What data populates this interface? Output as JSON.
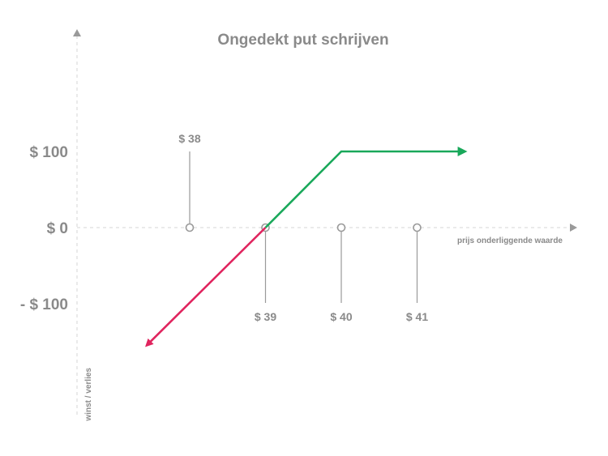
{
  "chart_data": {
    "type": "line",
    "title": "Ongedekt put schrijven",
    "xlabel": "prijs onderliggende waarde",
    "ylabel": "winst / verlies",
    "grid": false,
    "x_ticks": [
      {
        "value": 38,
        "label": "$ 38",
        "label_position": "above"
      },
      {
        "value": 39,
        "label": "$ 39",
        "label_position": "below"
      },
      {
        "value": 40,
        "label": "$ 40",
        "label_position": "below"
      },
      {
        "value": 41,
        "label": "$ 41",
        "label_position": "below"
      }
    ],
    "y_ticks": [
      {
        "value": 100,
        "label": "$ 100"
      },
      {
        "value": 0,
        "label": "$ 0"
      },
      {
        "value": -100,
        "label": "- $ 100"
      }
    ],
    "xlim": [
      36.3,
      42.8
    ],
    "ylim": [
      -250,
      260
    ],
    "series": [
      {
        "color": "#e0245e",
        "points": [
          [
            39,
            0
          ],
          [
            37.45,
            -153
          ]
        ],
        "arrow_end": true
      },
      {
        "color": "#19a85a",
        "points": [
          [
            39,
            0
          ],
          [
            40,
            100
          ],
          [
            41.6,
            100
          ]
        ],
        "arrow_end": true
      }
    ],
    "colors": {
      "text": "#8a8a8a",
      "axis": "#d4d4d4",
      "marker": "#9a9a9a"
    }
  }
}
